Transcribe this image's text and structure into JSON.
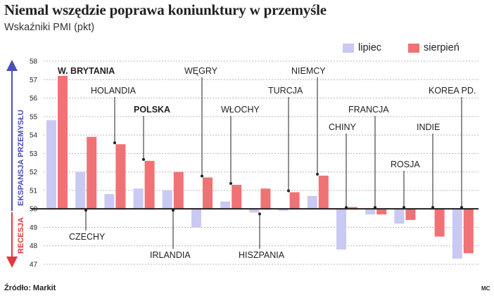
{
  "title": "Niemal wszędzie poprawa koniunktury w przemyśle",
  "subtitle": "Wskaźniki PMI (pkt)",
  "legend": {
    "july": "lipiec",
    "august": "sierpień"
  },
  "source": "Źródło: Markit",
  "credit": "MC",
  "side_labels": {
    "expansion": "EKSPANSJA PRZEMYSŁU",
    "recession": "RECESJA"
  },
  "colors": {
    "july": "#c9c9f3",
    "august": "#f07275",
    "expansion": "#4a4fb8",
    "recession": "#e03a3e",
    "grid": "#b8b8b8"
  },
  "chart_data": {
    "type": "bar",
    "baseline": 50,
    "ylim": [
      47,
      58
    ],
    "yticks": [
      47,
      48,
      49,
      50,
      51,
      52,
      53,
      54,
      55,
      56,
      57,
      58
    ],
    "categories": [
      "W. BRYTANIA",
      "CZECHY",
      "HOLANDIA",
      "POLSKA",
      "IRLANDIA",
      "WĘGRY",
      "WŁOCHY",
      "HISZPANIA",
      "TURCJA",
      "NIEMCY",
      "CHINY",
      "FRANCJA",
      "ROSJA",
      "INDIE",
      "KOREA PD."
    ],
    "emphasized": [
      "W. BRYTANIA",
      "POLSKA"
    ],
    "series": [
      {
        "name": "lipiec",
        "values": [
          54.8,
          52.0,
          50.8,
          51.1,
          51.0,
          49.0,
          50.4,
          49.8,
          49.9,
          50.7,
          47.8,
          49.7,
          49.2,
          50.0,
          47.3
        ]
      },
      {
        "name": "sierpień",
        "values": [
          57.2,
          53.9,
          53.5,
          52.6,
          52.0,
          51.7,
          51.3,
          51.1,
          50.9,
          51.8,
          50.1,
          49.7,
          49.4,
          48.5,
          47.6
        ]
      }
    ]
  }
}
